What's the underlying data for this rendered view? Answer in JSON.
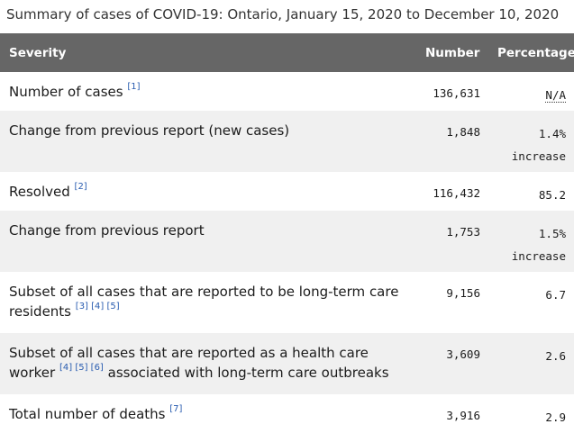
{
  "caption": "Summary of cases of COVID-19: Ontario, January 15, 2020 to December 10, 2020",
  "headers": {
    "severity": "Severity",
    "number": "Number",
    "percentage": "Percentage"
  },
  "rows": [
    {
      "label": "Number of cases",
      "refs": [
        "[1]"
      ],
      "number": "136,631",
      "percentage": "N/A",
      "percentage_note": ""
    },
    {
      "label": "Change from previous report (new cases)",
      "refs": [],
      "number": "1,848",
      "percentage": "1.4%",
      "percentage_note": "increase"
    },
    {
      "label": "Resolved",
      "refs": [
        "[2]"
      ],
      "number": "116,432",
      "percentage": "85.2",
      "percentage_note": ""
    },
    {
      "label": "Change from previous report",
      "refs": [],
      "number": "1,753",
      "percentage": "1.5%",
      "percentage_note": "increase"
    },
    {
      "label": "Subset of all cases that are reported to be long-term care residents",
      "refs": [
        "[3]",
        "[4]",
        "[5]"
      ],
      "number": "9,156",
      "percentage": "6.7",
      "percentage_note": ""
    },
    {
      "label_a": "Subset of all cases that are reported as a health care worker",
      "refs": [
        "[4]",
        "[5]",
        "[6]"
      ],
      "label_b": "associated with long-term care outbreaks",
      "number": "3,609",
      "percentage": "2.6",
      "percentage_note": ""
    },
    {
      "label": "Total number of deaths",
      "refs": [
        "[7]"
      ],
      "number": "3,916",
      "percentage": "2.9",
      "percentage_note": ""
    }
  ]
}
